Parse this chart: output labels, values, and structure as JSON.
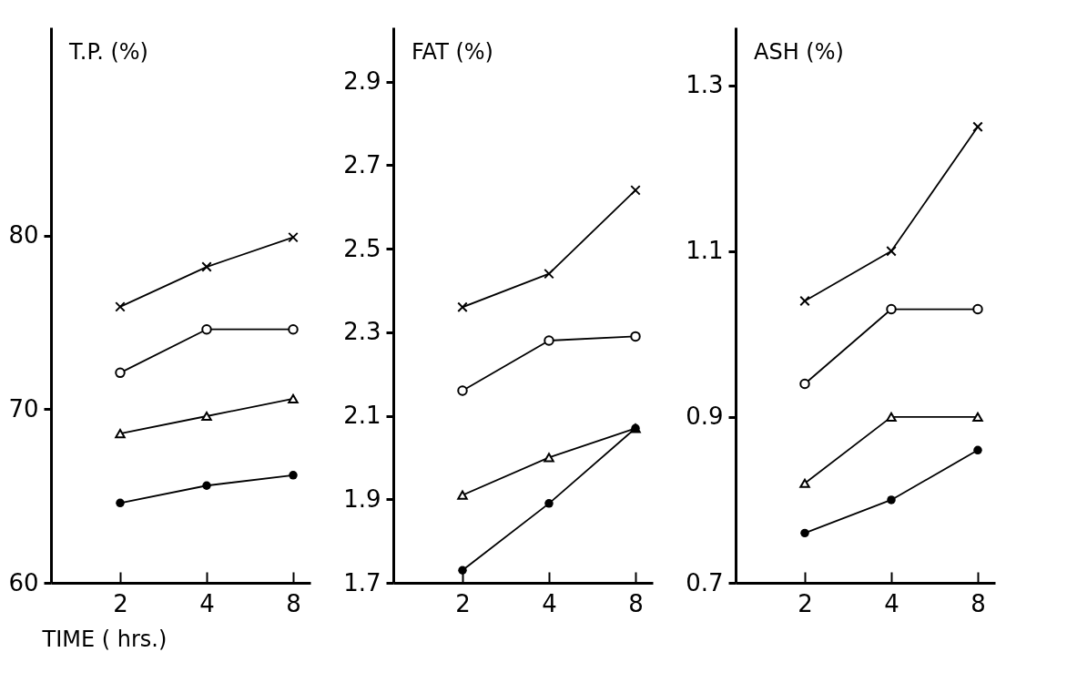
{
  "chart_data": [
    {
      "type": "line",
      "title": "T.P. (%)",
      "xlabel": "TIME ( hrs.)",
      "categories": [
        "2",
        "4",
        "8"
      ],
      "ylim": [
        60,
        92
      ],
      "yticks": [
        60,
        70,
        80
      ],
      "line_style": "solid",
      "series": [
        {
          "color": "#000000",
          "marker": "cross",
          "values": [
            75.9,
            78.2,
            79.9
          ]
        },
        {
          "color": "#000000",
          "marker": "circle",
          "values": [
            72.1,
            74.6,
            74.6
          ]
        },
        {
          "color": "#000000",
          "marker": "triangle",
          "values": [
            68.6,
            69.6,
            70.6
          ]
        },
        {
          "color": "#000000",
          "marker": "circle",
          "values": [
            64.6,
            65.6,
            66.2
          ]
        }
      ]
    },
    {
      "type": "line",
      "title": "FAT (%)",
      "categories": [
        "2",
        "4",
        "8"
      ],
      "ylim": [
        1.7,
        3.03
      ],
      "yticks": [
        1.7,
        1.9,
        2.1,
        2.3,
        2.5,
        2.7,
        2.9
      ],
      "line_style": "solid",
      "series": [
        {
          "color": "#000000",
          "marker": "cross",
          "values": [
            2.36,
            2.44,
            2.64
          ]
        },
        {
          "color": "#000000",
          "marker": "circle",
          "values": [
            2.16,
            2.28,
            2.29
          ]
        },
        {
          "color": "#000000",
          "marker": "triangle",
          "values": [
            1.91,
            2.0,
            2.07
          ]
        },
        {
          "color": "#000000",
          "marker": "circle",
          "values": [
            1.73,
            1.89,
            2.07
          ]
        }
      ]
    },
    {
      "type": "line",
      "title": "ASH (%)",
      "categories": [
        "2",
        "4",
        "8"
      ],
      "ylim": [
        0.7,
        1.37
      ],
      "yticks": [
        0.7,
        0.9,
        1.1,
        1.3
      ],
      "line_style": "solid",
      "series": [
        {
          "color": "#000000",
          "marker": "cross",
          "values": [
            1.04,
            1.1,
            1.25
          ]
        },
        {
          "color": "#000000",
          "marker": "circle",
          "values": [
            0.94,
            1.03,
            1.03
          ]
        },
        {
          "color": "#000000",
          "marker": "triangle",
          "values": [
            0.82,
            0.9,
            0.9
          ]
        },
        {
          "color": "#000000",
          "marker": "circle",
          "values": [
            0.76,
            0.8,
            0.86
          ]
        }
      ]
    }
  ]
}
